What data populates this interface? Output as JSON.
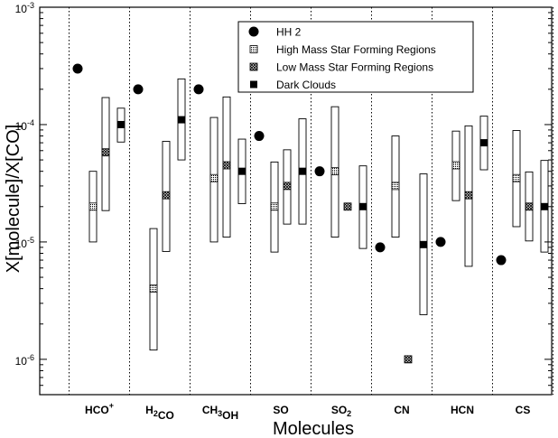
{
  "chart_data": {
    "type": "scatter",
    "xlabel": "Molecules",
    "ylabel": "X[molecule]/X[CO]",
    "yscale": "log",
    "ylim": [
      5e-07,
      0.001
    ],
    "y_ticks": [
      {
        "value": 0.001,
        "base": "10",
        "exp": "-3"
      },
      {
        "value": 0.0001,
        "base": "10",
        "exp": "-4"
      },
      {
        "value": 1e-05,
        "base": "10",
        "exp": "-5"
      },
      {
        "value": 1e-06,
        "base": "10",
        "exp": "-6"
      }
    ],
    "categories": [
      {
        "main": "HCO",
        "sub": "",
        "sup": "+"
      },
      {
        "main": "H",
        "sub": "2",
        "after": "CO"
      },
      {
        "main": "CH",
        "sub": "3",
        "after": "OH"
      },
      {
        "main": "SO"
      },
      {
        "main": "SO",
        "sub": "2"
      },
      {
        "main": "CN"
      },
      {
        "main": "HCN"
      },
      {
        "main": "CS"
      }
    ],
    "legend_position": "top-right",
    "series": [
      {
        "name": "HH 2",
        "marker": "filled-circle",
        "values": [
          0.0003,
          0.0002,
          0.0002,
          8e-05,
          4e-05,
          9e-06,
          1e-05,
          7e-06
        ]
      },
      {
        "name": "High Mass Star Forming Regions",
        "marker": "dotted-square",
        "values": [
          2e-05,
          4e-06,
          3.5e-05,
          2e-05,
          4e-05,
          3e-05,
          4.5e-05,
          3.5e-05
        ],
        "ranges": [
          [
            1e-05,
            4e-05
          ],
          [
            1.2e-06,
            1.3e-05
          ],
          [
            1e-05,
            0.000115
          ],
          [
            8.2e-06,
            4.8e-05
          ],
          [
            1.1e-05,
            0.000142
          ],
          [
            1.1e-05,
            8e-05
          ],
          [
            2.25e-05,
            8.8e-05
          ],
          [
            1.35e-05,
            8.9e-05
          ]
        ]
      },
      {
        "name": "Low Mass Star Forming Regions",
        "marker": "hatched-square",
        "values": [
          5.8e-05,
          2.5e-05,
          4.5e-05,
          3e-05,
          2e-05,
          1e-06,
          2.5e-05,
          2e-05
        ],
        "ranges": [
          [
            1.85e-05,
            0.00017
          ],
          [
            8.3e-06,
            7.2e-05
          ],
          [
            1.1e-05,
            0.000172
          ],
          [
            1.42e-05,
            6.1e-05
          ],
          [
            null,
            null
          ],
          [
            null,
            null
          ],
          [
            6.2e-06,
            9.75e-05
          ],
          [
            1.02e-05,
            3.95e-05
          ]
        ]
      },
      {
        "name": "Dark Clouds",
        "marker": "filled-square",
        "values": [
          0.0001,
          0.00011,
          4e-05,
          4e-05,
          2e-05,
          9.5e-06,
          7e-05,
          2e-05
        ],
        "ranges": [
          [
            7.1e-05,
            0.000138
          ],
          [
            5e-05,
            0.000245
          ],
          [
            2.12e-05,
            7.52e-05
          ],
          [
            1.42e-05,
            0.000112
          ],
          [
            8.8e-06,
            4.45e-05
          ],
          [
            2.4e-06,
            3.8e-05
          ],
          [
            4.12e-05,
            0.000118
          ],
          [
            8.2e-06,
            4.95e-05
          ]
        ]
      }
    ]
  }
}
